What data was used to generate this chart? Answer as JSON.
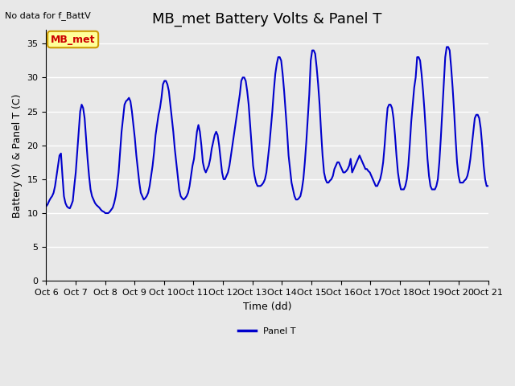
{
  "title": "MB_met Battery Volts & Panel T",
  "no_data_text": "No data for f_BattV",
  "xlabel": "Time (dd)",
  "ylabel": "Battery (V) & Panel T (C)",
  "ylim": [
    0,
    37
  ],
  "yticks": [
    0,
    5,
    10,
    15,
    20,
    25,
    30,
    35
  ],
  "xmin": 6,
  "xmax": 21,
  "xtick_labels": [
    "Oct 6",
    "Oct 7",
    "Oct 8",
    "Oct 9",
    "Oct 10",
    "Oct 11",
    "Oct 12",
    "Oct 13",
    "Oct 14",
    "Oct 15",
    "Oct 16",
    "Oct 17",
    "Oct 18",
    "Oct 19",
    "Oct 20",
    "Oct 21"
  ],
  "xtick_positions": [
    6,
    7,
    8,
    9,
    10,
    11,
    12,
    13,
    14,
    15,
    16,
    17,
    18,
    19,
    20,
    21
  ],
  "line_color": "#0000cc",
  "line_width": 1.5,
  "legend_label": "Panel T",
  "legend_line_color": "#0000cc",
  "box_label": "MB_met",
  "box_facecolor": "#ffff99",
  "box_edgecolor": "#cc9900",
  "box_textcolor": "#cc0000",
  "grid_color": "#ffffff",
  "bg_color": "#e8e8e8",
  "title_fontsize": 13,
  "axis_fontsize": 9,
  "tick_fontsize": 8,
  "panel_t_y": [
    11.0,
    11.3,
    11.8,
    12.2,
    12.5,
    13.0,
    14.0,
    15.5,
    17.0,
    18.5,
    18.8,
    15.5,
    12.5,
    11.5,
    11.0,
    10.8,
    10.7,
    11.2,
    11.8,
    14.0,
    16.0,
    19.0,
    22.0,
    25.0,
    26.0,
    25.5,
    24.0,
    21.0,
    18.0,
    15.5,
    13.5,
    12.5,
    12.0,
    11.5,
    11.2,
    11.0,
    10.8,
    10.5,
    10.3,
    10.2,
    10.0,
    10.0,
    10.0,
    10.2,
    10.5,
    10.8,
    11.5,
    12.5,
    14.0,
    16.0,
    19.0,
    22.0,
    24.0,
    26.0,
    26.5,
    26.7,
    27.0,
    26.5,
    25.0,
    23.0,
    21.0,
    18.5,
    16.5,
    14.5,
    13.0,
    12.5,
    12.0,
    12.2,
    12.5,
    13.0,
    14.0,
    15.5,
    17.0,
    19.0,
    21.5,
    23.0,
    24.5,
    25.5,
    27.0,
    29.0,
    29.5,
    29.5,
    29.0,
    28.0,
    26.0,
    24.0,
    22.0,
    19.5,
    17.5,
    15.5,
    13.5,
    12.5,
    12.2,
    12.0,
    12.2,
    12.5,
    13.0,
    14.0,
    15.5,
    17.0,
    18.0,
    20.0,
    22.0,
    23.0,
    22.0,
    20.0,
    17.5,
    16.5,
    16.0,
    16.5,
    17.0,
    18.0,
    19.5,
    20.5,
    21.5,
    22.0,
    21.5,
    20.0,
    18.0,
    16.0,
    15.0,
    15.0,
    15.5,
    16.0,
    17.0,
    18.5,
    20.0,
    21.5,
    23.0,
    24.5,
    26.0,
    27.5,
    29.5,
    30.0,
    30.0,
    29.5,
    28.0,
    26.0,
    23.0,
    20.0,
    17.0,
    15.5,
    14.5,
    14.0,
    14.0,
    14.0,
    14.2,
    14.5,
    15.0,
    16.0,
    18.0,
    20.0,
    22.5,
    25.0,
    28.0,
    30.5,
    32.0,
    33.0,
    33.0,
    32.5,
    30.5,
    28.0,
    25.0,
    22.0,
    18.5,
    16.5,
    14.5,
    13.5,
    12.5,
    12.0,
    12.0,
    12.2,
    12.5,
    13.5,
    15.0,
    17.5,
    20.5,
    24.0,
    27.5,
    32.5,
    34.0,
    34.0,
    33.5,
    31.5,
    29.0,
    26.0,
    22.0,
    18.5,
    16.0,
    15.0,
    14.5,
    14.5,
    14.8,
    15.0,
    15.5,
    16.5,
    17.0,
    17.5,
    17.5,
    17.0,
    16.5,
    16.0,
    16.0,
    16.2,
    16.5,
    17.0,
    18.0,
    16.0,
    16.5,
    17.0,
    17.5,
    18.0,
    18.5,
    18.0,
    17.5,
    17.0,
    16.5,
    16.5,
    16.2,
    16.0,
    15.5,
    15.0,
    14.5,
    14.0,
    14.0,
    14.5,
    15.0,
    16.0,
    17.5,
    20.0,
    23.0,
    25.5,
    26.0,
    26.0,
    25.5,
    24.0,
    21.5,
    18.5,
    16.0,
    14.5,
    13.5,
    13.5,
    13.5,
    14.0,
    15.0,
    17.0,
    20.0,
    23.5,
    26.0,
    28.5,
    30.0,
    33.0,
    33.0,
    32.5,
    30.5,
    28.0,
    25.0,
    21.5,
    18.0,
    15.5,
    14.0,
    13.5,
    13.5,
    13.5,
    14.0,
    15.0,
    17.5,
    21.0,
    25.0,
    29.0,
    33.0,
    34.5,
    34.5,
    34.0,
    31.5,
    28.5,
    25.0,
    21.0,
    17.5,
    15.5,
    14.5,
    14.5,
    14.5,
    14.8,
    15.0,
    15.5,
    16.5,
    18.0,
    20.0,
    22.0,
    24.0,
    24.5,
    24.5,
    24.0,
    22.5,
    20.0,
    17.0,
    15.0,
    14.0,
    14.0
  ]
}
